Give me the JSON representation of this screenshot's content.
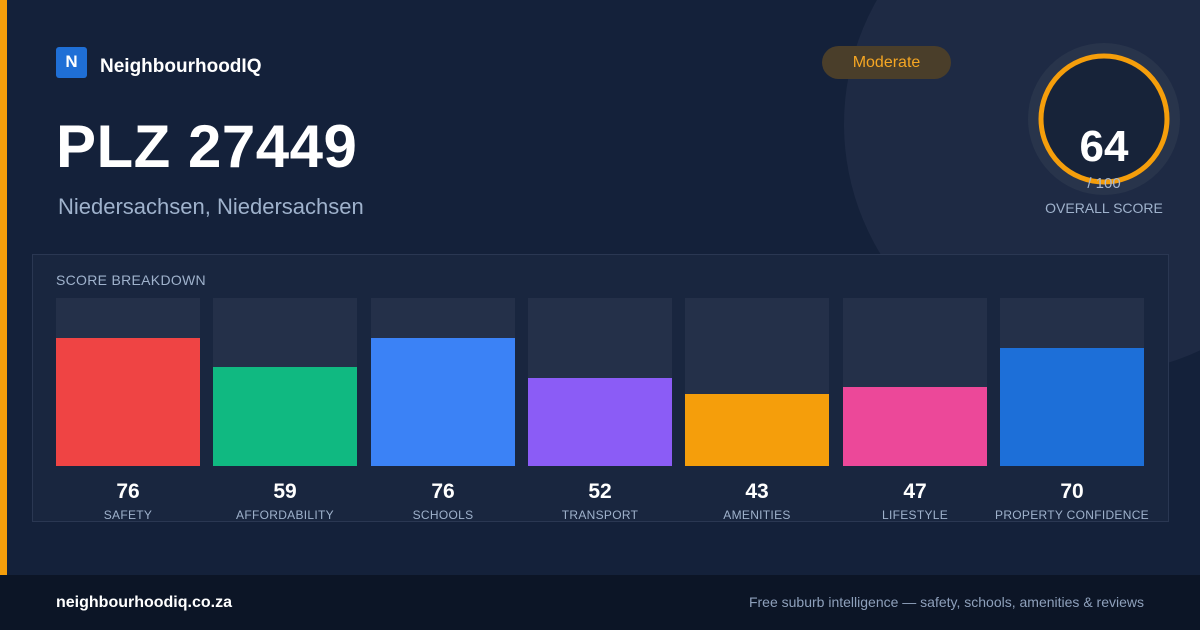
{
  "brand": {
    "logo_letter": "N",
    "name": "NeighbourhoodIQ"
  },
  "location": {
    "title": "PLZ 27449",
    "region": "Niedersachsen, Niedersachsen"
  },
  "rating": {
    "label": "Moderate",
    "color": "#f5a623"
  },
  "overall": {
    "score": "64",
    "max_label": "/ 100",
    "score_value": 64,
    "max_value": 100,
    "label": "OVERALL SCORE",
    "ring_color": "#f59e0b"
  },
  "breakdown": {
    "title": "SCORE BREAKDOWN",
    "max_value": 100,
    "items": [
      {
        "label": "SAFETY",
        "score": "76",
        "value": 76,
        "color": "#ef4444"
      },
      {
        "label": "AFFORDABILITY",
        "score": "59",
        "value": 59,
        "color": "#10b981"
      },
      {
        "label": "SCHOOLS",
        "score": "76",
        "value": 76,
        "color": "#3b82f6"
      },
      {
        "label": "TRANSPORT",
        "score": "52",
        "value": 52,
        "color": "#8b5cf6"
      },
      {
        "label": "AMENITIES",
        "score": "43",
        "value": 43,
        "color": "#f59e0b"
      },
      {
        "label": "LIFESTYLE",
        "score": "47",
        "value": 47,
        "color": "#ec4899"
      },
      {
        "label": "PROPERTY CONFIDENCE",
        "score": "70",
        "value": 70,
        "color": "#1d6fd8"
      }
    ]
  },
  "footer": {
    "domain": "neighbourhoodiq.co.za",
    "tagline": "Free suburb intelligence — safety, schools, amenities & reviews"
  }
}
